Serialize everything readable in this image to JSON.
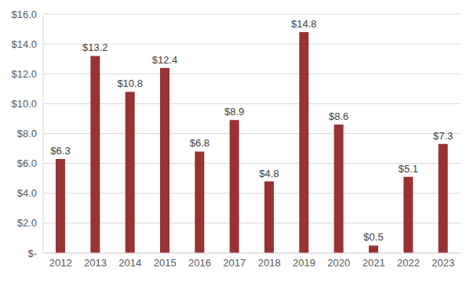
{
  "chart_data": {
    "type": "bar",
    "categories": [
      "2012",
      "2013",
      "2014",
      "2015",
      "2016",
      "2017",
      "2018",
      "2019",
      "2020",
      "2021",
      "2022",
      "2023"
    ],
    "values": [
      6.3,
      13.2,
      10.8,
      12.4,
      6.8,
      8.9,
      4.8,
      14.8,
      8.6,
      0.5,
      5.1,
      7.3
    ],
    "value_labels": [
      "$6.3",
      "$13.2",
      "$10.8",
      "$12.4",
      "$6.8",
      "$8.9",
      "$4.8",
      "$14.8",
      "$8.6",
      "$0.5",
      "$5.1",
      "$7.3"
    ],
    "color": "#993233",
    "ylim": [
      0,
      16
    ],
    "yticks": [
      {
        "value": 0,
        "label": "$-"
      },
      {
        "value": 2,
        "label": "$2.0"
      },
      {
        "value": 4,
        "label": "$4.0"
      },
      {
        "value": 6,
        "label": "$6.0"
      },
      {
        "value": 8,
        "label": "$8.0"
      },
      {
        "value": 10,
        "label": "$10.0"
      },
      {
        "value": 12,
        "label": "$12.0"
      },
      {
        "value": 14,
        "label": "$14.0"
      },
      {
        "value": 16,
        "label": "$16.0"
      }
    ],
    "grid": true,
    "data_labels": true
  }
}
